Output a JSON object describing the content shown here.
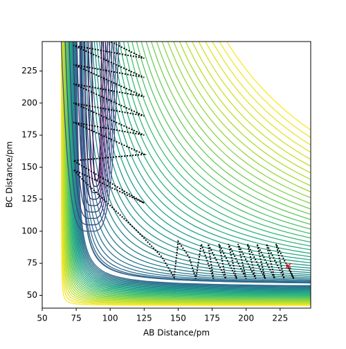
{
  "chart_data": {
    "type": "trajectory",
    "x_label": "AB Distance/pm",
    "y_label": "BC Distance/pm",
    "xlim": [
      50,
      247.5
    ],
    "ylim": [
      40,
      248
    ],
    "xticks": [
      50,
      75,
      100,
      125,
      150,
      175,
      200,
      225
    ],
    "yticks": [
      50,
      75,
      100,
      125,
      150,
      175,
      200,
      225
    ],
    "color": "#000000",
    "start_color": "#e41a1c",
    "x": [
      231,
      235,
      222,
      228,
      215,
      221,
      208,
      214,
      201,
      207,
      194,
      200,
      187,
      193,
      180,
      185,
      172,
      176,
      167,
      163,
      158,
      150,
      147,
      138,
      120,
      100,
      80,
      73,
      125,
      73,
      125,
      73,
      125,
      73,
      125,
      73,
      125,
      73,
      125,
      73,
      125,
      100
    ],
    "y": [
      73,
      63,
      90,
      63,
      90,
      63,
      90,
      63,
      90,
      63,
      90,
      63,
      90,
      63,
      90,
      63,
      90,
      63,
      90,
      63,
      80,
      92,
      64,
      80,
      100,
      120,
      140,
      148,
      122,
      155,
      160,
      185,
      175,
      200,
      190,
      215,
      205,
      230,
      220,
      245,
      235,
      248
    ]
  }
}
